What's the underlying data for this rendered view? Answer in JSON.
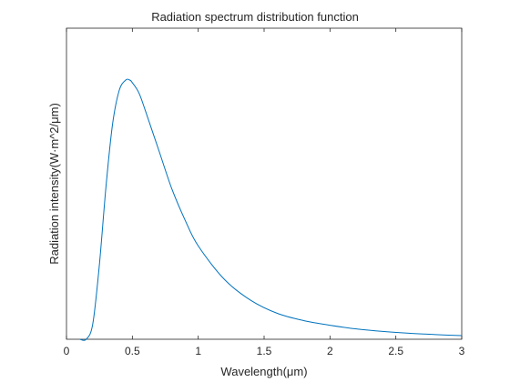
{
  "chart_data": {
    "type": "line",
    "title": "Radiation spectrum distribution function",
    "xlabel": "Wavelength(μm)",
    "ylabel": "Radiation intensity(W·m^2/μm)",
    "xlim": [
      0,
      3
    ],
    "x_ticks": [
      0,
      0.5,
      1,
      1.5,
      2,
      2.5,
      3
    ],
    "x_tick_labels": [
      "0",
      "0.5",
      "1",
      "1.5",
      "2",
      "2.5",
      "3"
    ],
    "y_tick_labels": [],
    "grid": false,
    "line_color": "#0072BD",
    "series": [
      {
        "x": [
          0.1,
          0.15,
          0.2,
          0.25,
          0.3,
          0.35,
          0.4,
          0.45,
          0.48,
          0.5,
          0.55,
          0.6,
          0.7,
          0.8,
          0.9,
          1.0,
          1.2,
          1.4,
          1.6,
          1.8,
          2.0,
          2.2,
          2.4,
          2.6,
          2.8,
          3.0
        ],
        "y": [
          0.0,
          0.0,
          0.06,
          0.29,
          0.59,
          0.83,
          0.96,
          1.0,
          1.0,
          0.99,
          0.95,
          0.88,
          0.73,
          0.58,
          0.46,
          0.36,
          0.23,
          0.15,
          0.1,
          0.072,
          0.054,
          0.04,
          0.03,
          0.023,
          0.018,
          0.014
        ]
      }
    ]
  }
}
